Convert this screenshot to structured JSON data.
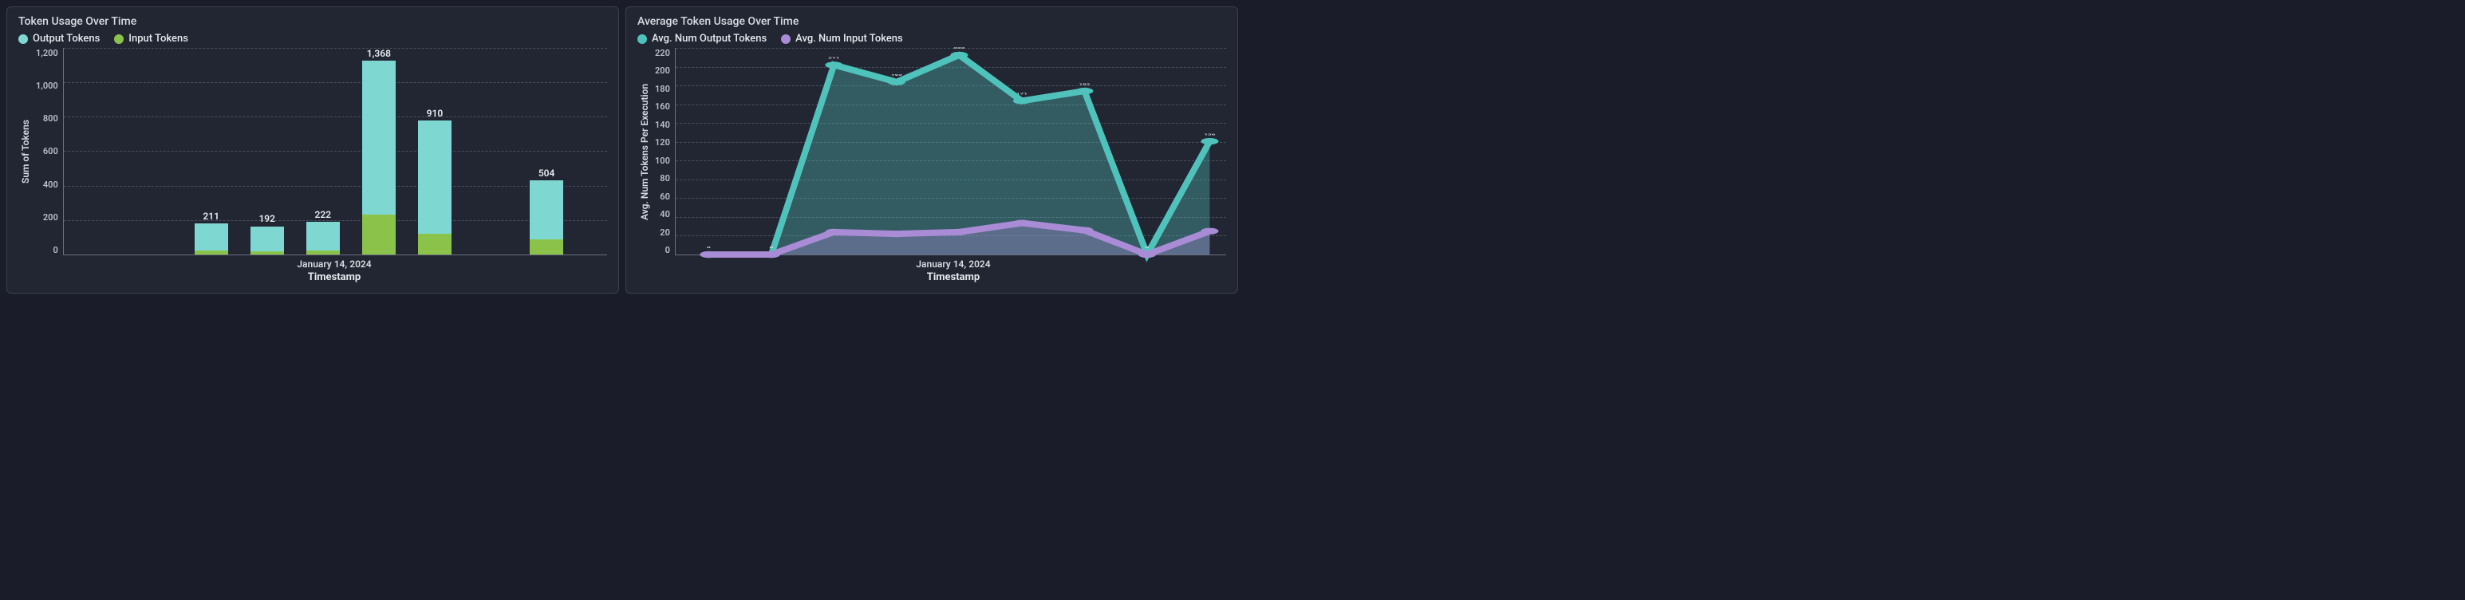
{
  "colors": {
    "panel_bg": "#222633",
    "page_bg": "#1a1d29",
    "grid": "#4a5060",
    "axis": "#6a7080",
    "text": "#d7dce1",
    "output_tokens": "#7fd7d1",
    "input_tokens": "#8bc34a",
    "avg_output": "#4fc3bb",
    "avg_input": "#a98bd6"
  },
  "bar_chart": {
    "title": "Token Usage Over Time",
    "legend": [
      {
        "label": "Output Tokens",
        "color": "#7fd7d1"
      },
      {
        "label": "Input Tokens",
        "color": "#8bc34a"
      }
    ],
    "y_label": "Sum of Tokens",
    "y_ticks": [
      "1,200",
      "1,000",
      "800",
      "600",
      "400",
      "200",
      "0"
    ],
    "y_max": 1400,
    "x_tick_label": "January 14, 2024",
    "x_axis_label": "Timestamp",
    "bar_width": 0.78,
    "gap_after_index": 4,
    "bars": [
      {
        "total_label": "211",
        "input": 25,
        "output": 186
      },
      {
        "total_label": "192",
        "input": 23,
        "output": 169
      },
      {
        "total_label": "222",
        "input": 25,
        "output": 197
      },
      {
        "total_label": "1,368",
        "input": 280,
        "output": 1088
      },
      {
        "total_label": "910",
        "input": 140,
        "output": 770
      },
      {
        "total_label": "504",
        "input": 105,
        "output": 399
      }
    ]
  },
  "line_chart": {
    "title": "Average Token Usage Over Time",
    "legend": [
      {
        "label": "Avg. Num Output Tokens",
        "color": "#4fc3bb"
      },
      {
        "label": "Avg. Num Input Tokens",
        "color": "#a98bd6"
      }
    ],
    "y_label": "Avg. Num Tokens Per Execution",
    "y_ticks": [
      "220",
      "200",
      "180",
      "160",
      "140",
      "120",
      "100",
      "80",
      "60",
      "40",
      "20",
      "0"
    ],
    "y_max": 230,
    "x_tick_label": "January 14, 2024",
    "x_axis_label": "Timestamp",
    "marker_radius": 4,
    "line_width": 2,
    "area_opacity": 0.35,
    "points": [
      {
        "label": "0",
        "output": 0,
        "input": 0
      },
      {
        "label": "0",
        "output": 0,
        "input": 0
      },
      {
        "label": "211",
        "output": 211,
        "input": 25
      },
      {
        "label": "192",
        "output": 192,
        "input": 23
      },
      {
        "label": "222",
        "output": 222,
        "input": 25
      },
      {
        "label": "171",
        "output": 171,
        "input": 35
      },
      {
        "label": "182",
        "output": 182,
        "input": 27
      },
      {
        "label": "0",
        "output": 0,
        "input": 0
      },
      {
        "label": "126",
        "output": 126,
        "input": 26
      }
    ]
  }
}
